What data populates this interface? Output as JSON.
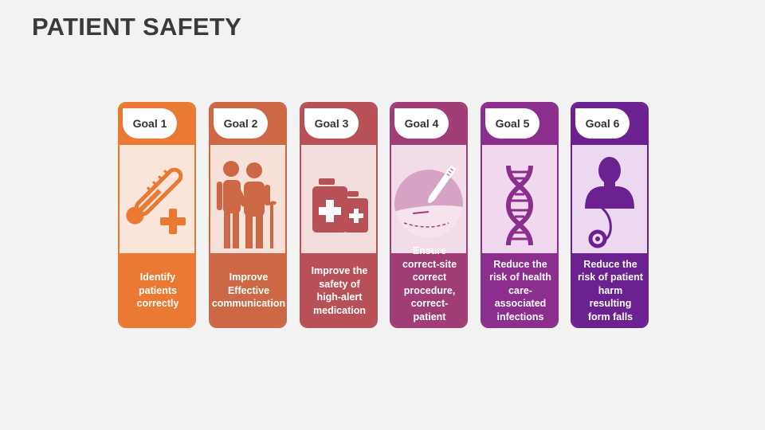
{
  "title": "PATIENT SAFETY",
  "goals": [
    {
      "label": "Goal 1",
      "text": "Identify patients correctly",
      "icon": "thermometer-plus-icon",
      "color": "#ea7a33",
      "bg": "#fbe6d9"
    },
    {
      "label": "Goal 2",
      "text": "Improve Effective communication",
      "icon": "elderly-couple-icon",
      "color": "#cd6846",
      "bg": "#f7e1d9"
    },
    {
      "label": "Goal 3",
      "text": "Improve the safety of high-alert medication",
      "icon": "medicine-bottles-icon",
      "color": "#b85058",
      "bg": "#f2dcdc"
    },
    {
      "label": "Goal 4",
      "text": "Ensure correct-site correct procedure, correct-patient surgery",
      "icon": "scalpel-incision-icon",
      "color": "#a03d76",
      "bg": "#f1dce8"
    },
    {
      "label": "Goal 5",
      "text": "Reduce the risk of health care-associated infections",
      "icon": "dna-icon",
      "color": "#8b2e8e",
      "bg": "#f1d8ee"
    },
    {
      "label": "Goal 6",
      "text": "Reduce the risk of patient harm resulting form falls",
      "icon": "doctor-stethoscope-icon",
      "color": "#6b2190",
      "bg": "#ecd9f1"
    }
  ]
}
